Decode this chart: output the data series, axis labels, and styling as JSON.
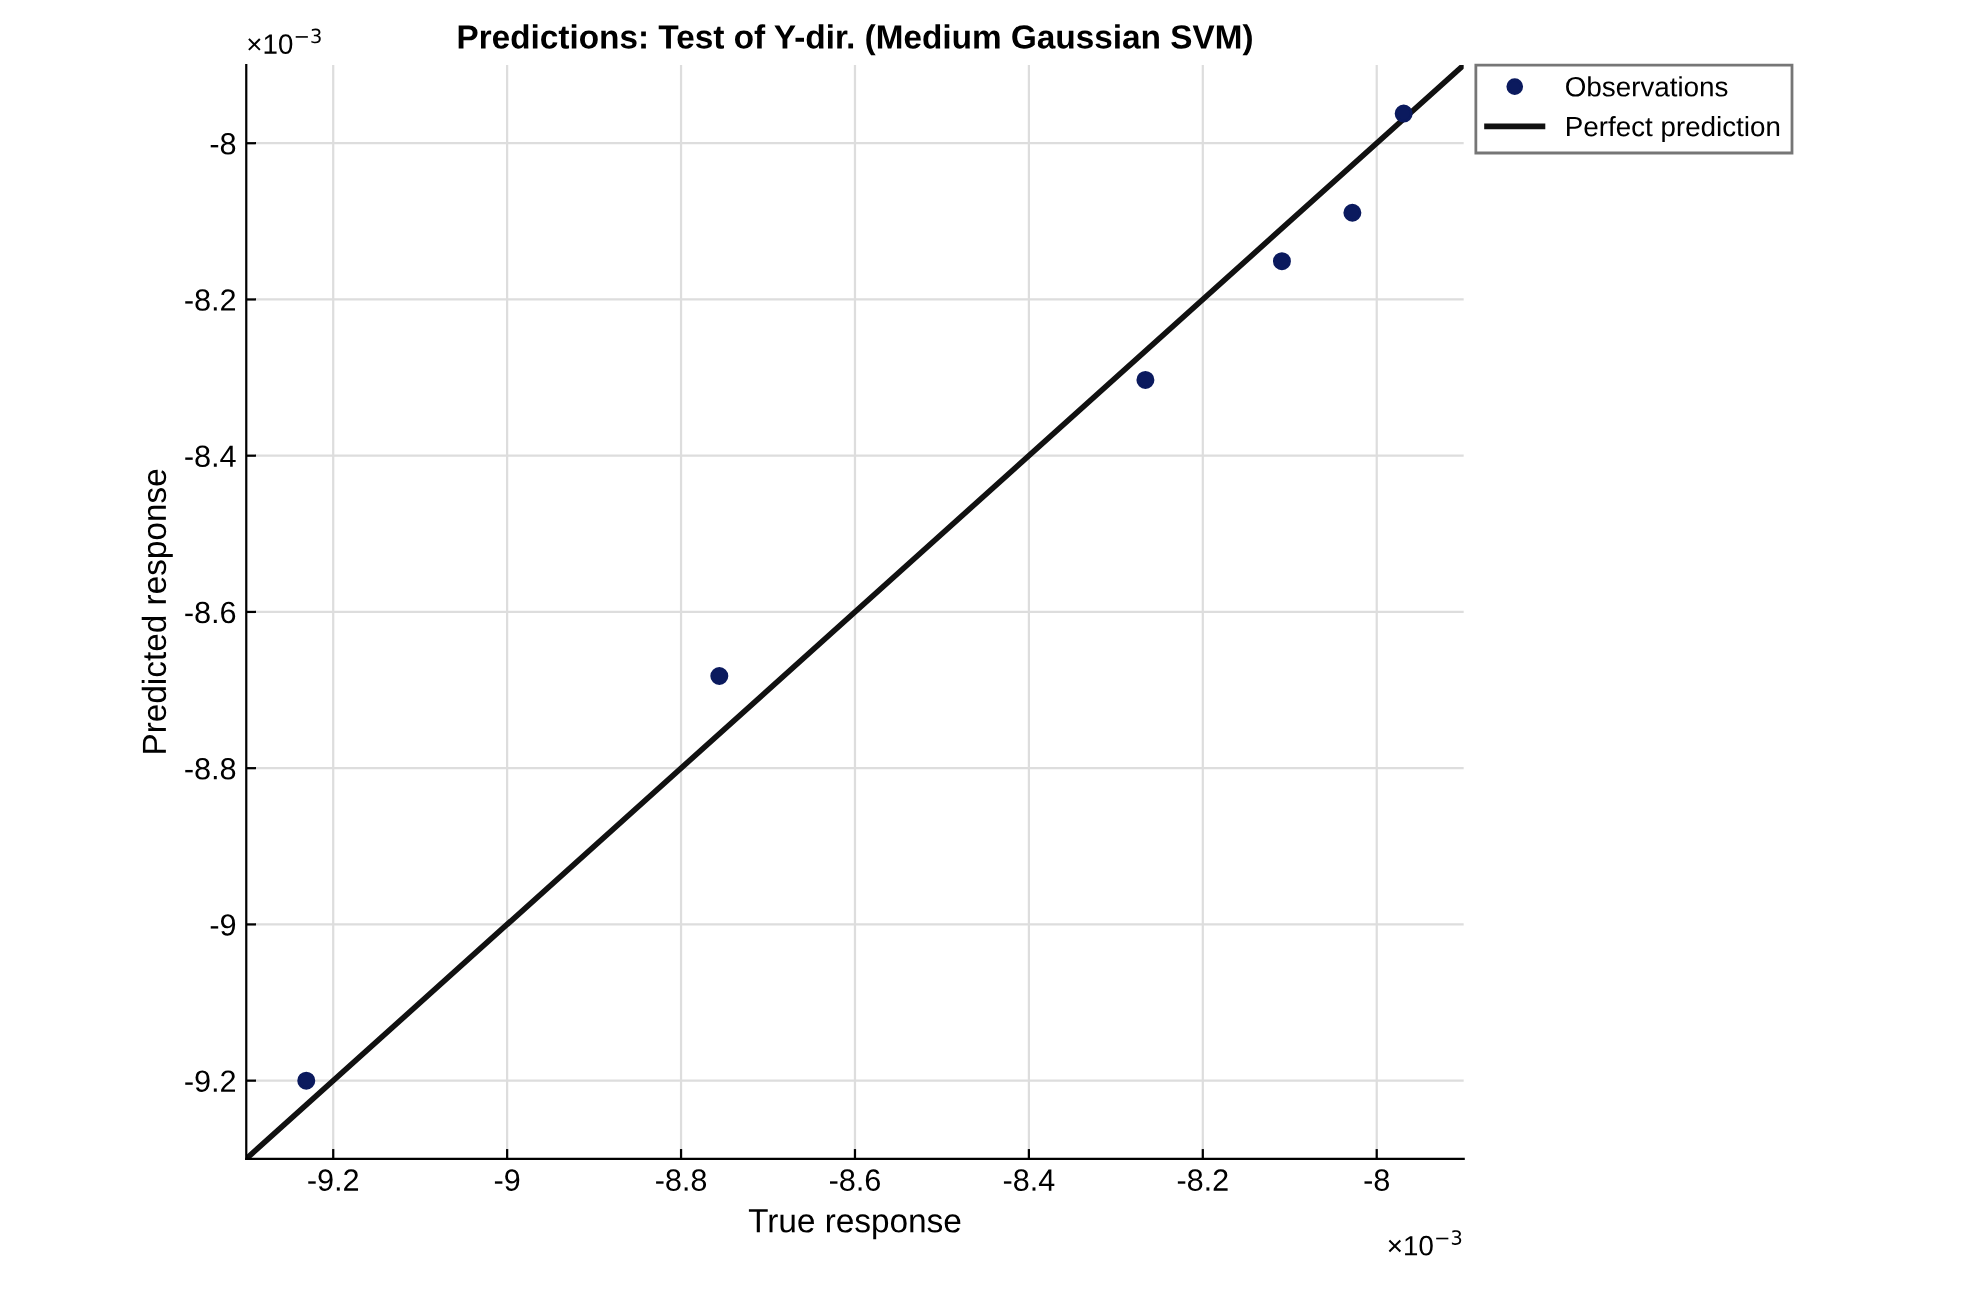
{
  "chart_data": {
    "type": "scatter",
    "title": "Predictions: Test of Y-dir. (Medium Gaussian SVM)",
    "xlabel": "True response",
    "ylabel": "Predicted response",
    "annotations": [
      "×10$^{−3}$",
      "×10$^{−3}$"
    ],
    "series": [
      {
        "name": "Observations",
        "color": "#0b1a5e",
        "marker": "circle",
        "x": [
          -9.231,
          -8.756,
          -8.266,
          -8.109,
          -8.028,
          -7.969
        ],
        "values": [
          -9.2,
          -8.682,
          -8.303,
          -8.151,
          -8.089,
          -7.962
        ]
      },
      {
        "name": "Perfect prediction",
        "type": "line",
        "color": "#111111",
        "line_style": "solid",
        "marker": "none",
        "x": [
          -9.3,
          -7.9
        ],
        "values": [
          -9.3,
          -7.9
        ]
      }
    ],
    "xlim": [
      -9.3,
      -7.9
    ],
    "ylim": [
      -9.3,
      -7.9
    ],
    "xticks": [
      -9.2,
      -9,
      -8.8,
      -8.6,
      -8.4,
      -8.2,
      -8
    ],
    "yticks": [
      -9.2,
      -9,
      -8.8,
      -8.6,
      -8.4,
      -8.2,
      -8
    ],
    "grid": true,
    "legend": "top right"
  }
}
